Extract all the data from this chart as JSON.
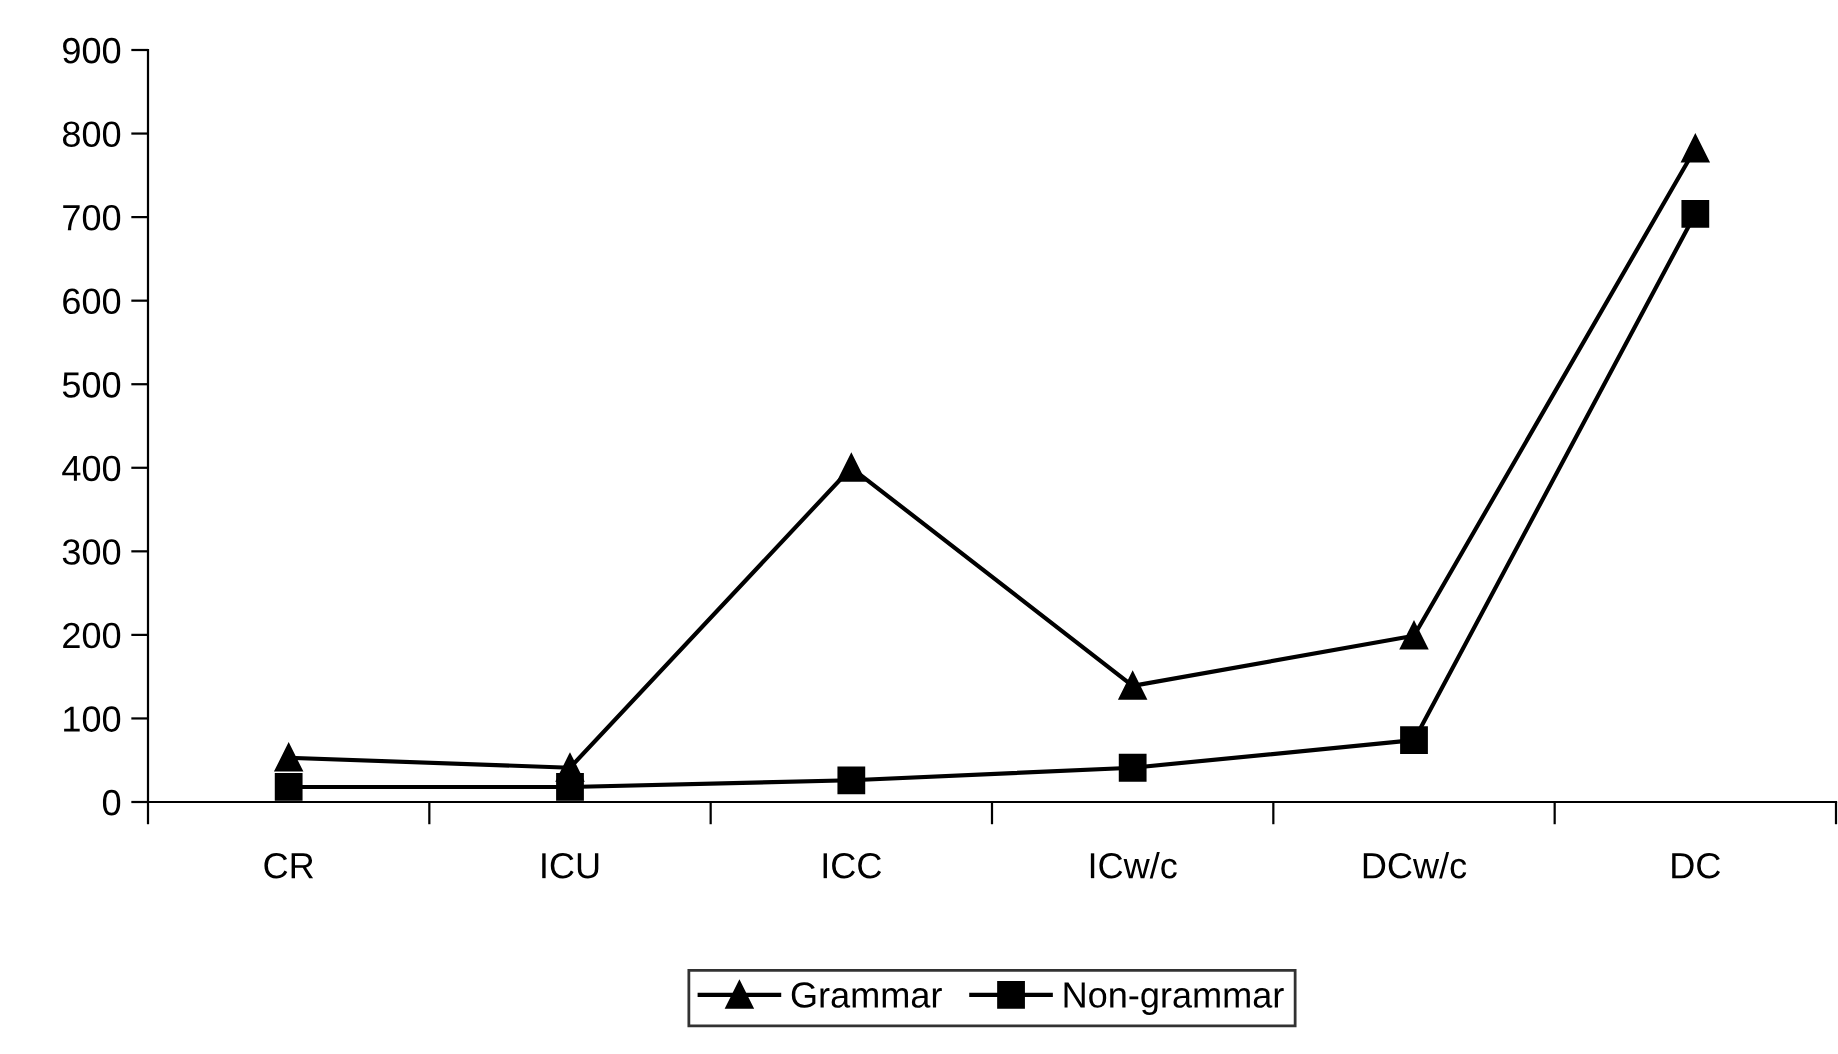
{
  "chart_data": {
    "type": "line",
    "categories": [
      "CR",
      "ICU",
      "ICC",
      "ICw/c",
      "DCw/c",
      "DC"
    ],
    "series": [
      {
        "name": "Grammar",
        "color": "#000000",
        "marker": "triangle",
        "values": [
          53,
          41,
          400,
          139,
          199,
          782
        ]
      },
      {
        "name": "Non-grammar",
        "color": "#000000",
        "marker": "square",
        "values": [
          18,
          18,
          26,
          41,
          74,
          704
        ]
      }
    ],
    "ylim": [
      0,
      900
    ],
    "yticks": [
      0,
      100,
      200,
      300,
      400,
      500,
      600,
      700,
      800,
      900
    ],
    "grid": false,
    "legend": "bottom",
    "line_style": "solid"
  }
}
